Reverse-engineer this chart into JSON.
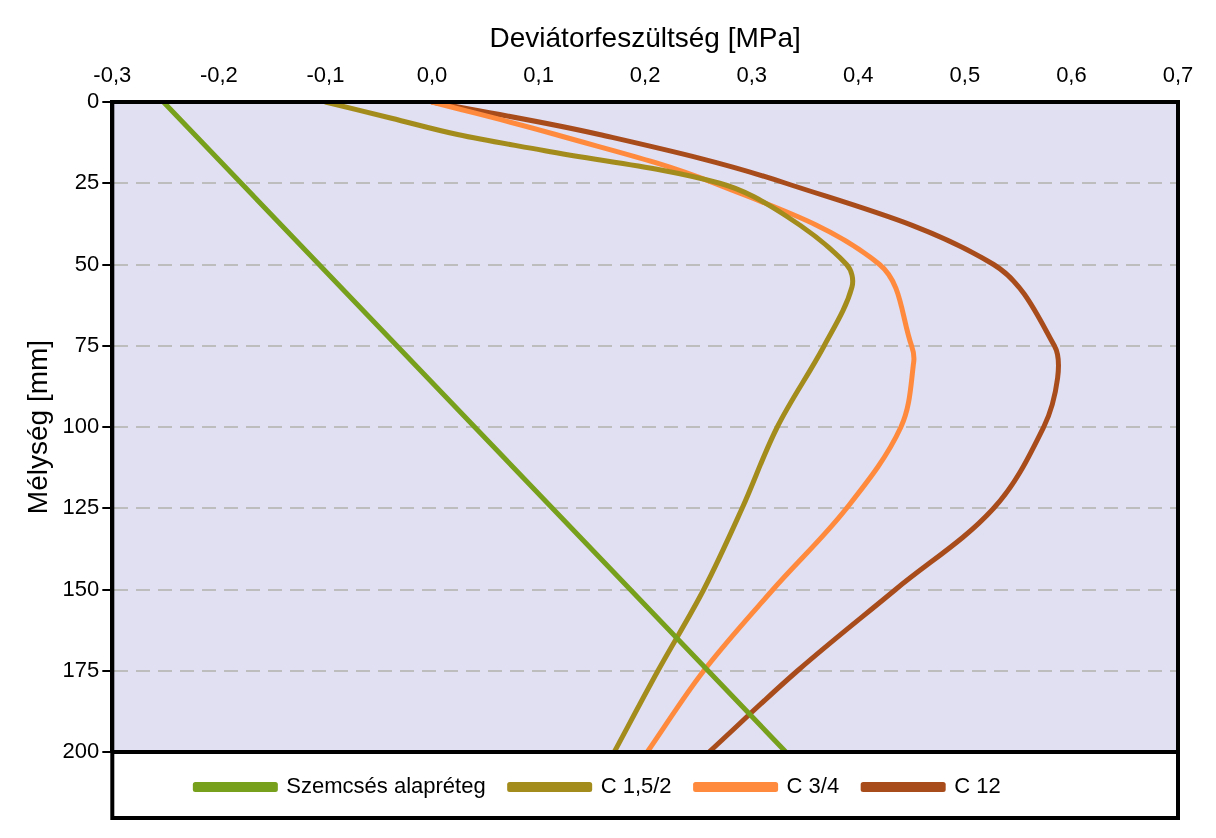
{
  "chart_data": {
    "type": "line",
    "xlabel": "Deviátorfeszültség [MPa]",
    "ylabel": "Mélység [mm]",
    "xlim": [
      -0.3,
      0.7
    ],
    "xticks": [
      {
        "value": -0.3,
        "label": "-0,3"
      },
      {
        "value": -0.2,
        "label": "-0,2"
      },
      {
        "value": -0.1,
        "label": "-0,1"
      },
      {
        "value": 0,
        "label": "0,0"
      },
      {
        "value": 0.1,
        "label": "0,1"
      },
      {
        "value": 0.2,
        "label": "0,2"
      },
      {
        "value": 0.3,
        "label": "0,3"
      },
      {
        "value": 0.4,
        "label": "0,4"
      },
      {
        "value": 0.5,
        "label": "0,5"
      },
      {
        "value": 0.6,
        "label": "0,6"
      },
      {
        "value": 0.7,
        "label": "0,7"
      }
    ],
    "ylim": [
      200,
      0
    ],
    "yticks": [
      0,
      25,
      50,
      75,
      100,
      125,
      150,
      175,
      200
    ],
    "grid": "y",
    "legend": "bottom",
    "marker": "none",
    "line_style": "solid",
    "series": [
      {
        "name": "Szemcsés alapréteg",
        "color": "#77a01c",
        "x": [
          -0.252,
          0.332
        ],
        "values": [
          0,
          200
        ]
      },
      {
        "name": "C 1,5/2",
        "color": "#a38c1c",
        "x": [
          -0.1,
          -0.038,
          0.024,
          0.106,
          0.27,
          0.332,
          0.389,
          0.394,
          0.368,
          0.324,
          0.291,
          0.255,
          0.212,
          0.171
        ],
        "values": [
          0,
          5,
          10,
          15,
          25,
          35,
          50,
          57,
          75,
          100,
          125,
          150,
          175,
          200
        ]
      },
      {
        "name": "C 3/4",
        "color": "#ff8a3d",
        "x": [
          0,
          0.116,
          0.265,
          0.42,
          0.45,
          0.452,
          0.44,
          0.389,
          0.32,
          0.255,
          0.202
        ],
        "values": [
          0,
          10,
          25,
          50,
          75,
          80,
          100,
          125,
          150,
          175,
          200
        ]
      },
      {
        "name": "C 12",
        "color": "#a84c1c",
        "x": [
          0,
          0.157,
          0.332,
          0.527,
          0.584,
          0.587,
          0.574,
          0.527,
          0.435,
          0.343,
          0.26
        ],
        "values": [
          0,
          10,
          25,
          50,
          75,
          85,
          100,
          125,
          150,
          175,
          200
        ]
      }
    ]
  }
}
